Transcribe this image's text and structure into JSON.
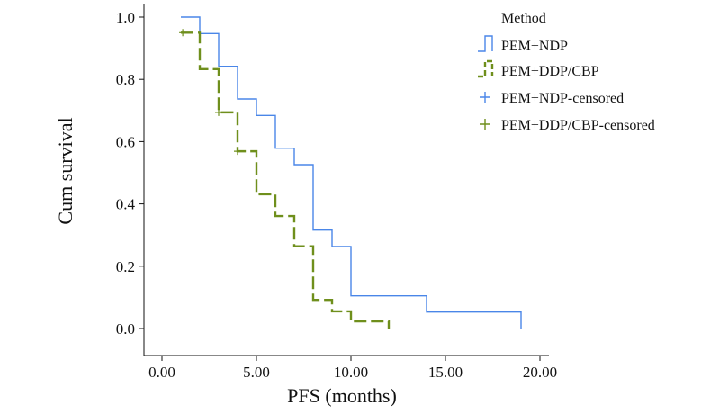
{
  "chart_data": {
    "type": "line",
    "title": "",
    "xlabel": "PFS (months)",
    "ylabel": "Cum survival",
    "xlim": [
      0,
      21
    ],
    "ylim": [
      0,
      1.0
    ],
    "xticks": [
      0,
      5,
      10,
      15,
      20
    ],
    "xtick_labels": [
      "0.00",
      "5.00",
      "10.00",
      "15.00",
      "20.00"
    ],
    "yticks": [
      0,
      0.2,
      0.4,
      0.6,
      0.8,
      1.0
    ],
    "ytick_labels": [
      "0.0",
      "0.2",
      "0.4",
      "0.6",
      "0.8",
      "1.0"
    ],
    "legend_title": "Method",
    "legend_position": "top-right",
    "series": [
      {
        "name": "PEM+NDP",
        "color": "#4a86e8",
        "dashed": false,
        "x": [
          1,
          2,
          3,
          4,
          5,
          6,
          7,
          8,
          9,
          10,
          14,
          19
        ],
        "y": [
          1.0,
          0.947,
          0.842,
          0.737,
          0.684,
          0.579,
          0.526,
          0.316,
          0.263,
          0.105,
          0.053,
          0.0
        ],
        "censored": []
      },
      {
        "name": "PEM+DDP/CBP",
        "color": "#6f8f1c",
        "dashed": true,
        "x": [
          1,
          2,
          3,
          4,
          5,
          6,
          7,
          8,
          9,
          10,
          12
        ],
        "y": [
          0.95,
          0.833,
          0.694,
          0.569,
          0.431,
          0.361,
          0.264,
          0.092,
          0.055,
          0.023,
          0.0
        ],
        "censored": [
          [
            1.1,
            0.95
          ],
          [
            3.0,
            0.694
          ],
          [
            4.0,
            0.569
          ]
        ]
      }
    ],
    "legend": [
      {
        "label": "PEM+NDP",
        "marker": "step",
        "color": "#4a86e8",
        "dashed": false
      },
      {
        "label": "PEM+DDP/CBP",
        "marker": "step",
        "color": "#6f8f1c",
        "dashed": true
      },
      {
        "label": "PEM+NDP-censored",
        "marker": "plus",
        "color": "#4a86e8"
      },
      {
        "label": "PEM+DDP/CBP-censored",
        "marker": "plus",
        "color": "#6f8f1c"
      }
    ]
  }
}
